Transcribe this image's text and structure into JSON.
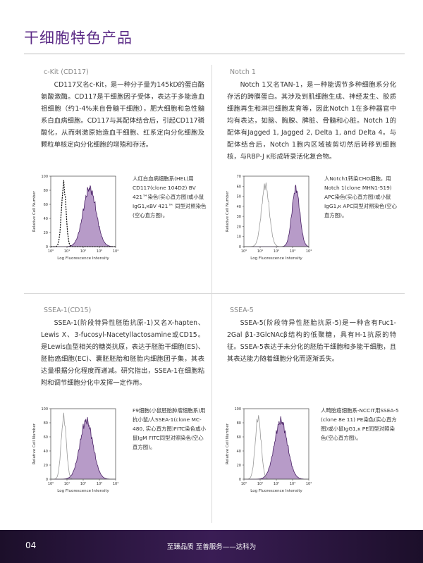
{
  "header": {
    "title": "干细胞特色产品"
  },
  "panels": [
    {
      "heading": "c-Kit (CD117)",
      "body": "CD117又名c-Kit，是一种分子量为145kD的蛋白酪氨酸激酶。CD117是干细胞因子受体，表达于多能造血祖细胞（约1-4%来自骨髓干细胞），肥大细胞和急性髓系白血病细胞。CD117与其配体结合后，引起CD117磷酸化，从而刺激原始造血干细胞、红系定向分化细胞及颗粒单核定向分化细胞的增殖和存活。",
      "caption": "人红白血病细胞系(HEL)用CD117(clone 104D2) BV 421™染色(实心直方图)或小鼠IgG1,κBV 421™ 同型对照染色(空心直方图)。",
      "plot": {
        "ylabel": "Relative Cell Number",
        "xlabel": "Log Fluorescence Intensity",
        "yticks": [
          0,
          20,
          40,
          60,
          80,
          100
        ],
        "xticks": [
          "10⁰",
          "10¹",
          "10²",
          "10³",
          "10⁴"
        ]
      }
    },
    {
      "heading": "Notch 1",
      "body": "Notch 1又名TAN-1，是一种能调节多种细胞系分化存活的跨膜蛋白。其涉及到肌细胞生成、神经发生、胶质细胞再生和淋巴细胞发育等，因此Notch 1在多种器官中均有表达，如脑、胸腺、脾脏、骨髓和心脏。Notch 1的配体有Jagged 1, Jagged 2, Delta 1, and Delta 4。与配体结合后，Notch 1胞内区域被剪切然后转移到细胞核，与RBP-J κ形成转录活化复合物。",
      "caption": "人Notch1转染CHO细胞，用Notch 1(clone MHN1-519) APC染色(实心直方图)或小鼠IgG1,κ APC同型对照染色(空心直方图)。",
      "plot": {
        "ylabel": "Relative Cell Number",
        "xlabel": "Log Fluorescence Intensity",
        "yticks": [
          0,
          10,
          20,
          30,
          40,
          50,
          60,
          70
        ],
        "xticks": [
          "10⁰",
          "10¹",
          "10²",
          "10³",
          "10⁴"
        ]
      }
    },
    {
      "heading": "SSEA-1(CD15)",
      "body": "SSEA-1(阶段特异性胚胎抗原-1)又名X-hapten、Lewis X、3-fucosyl-Nacetyllactosamine或CD15。是Lewis血型相关的糖类抗原，表达于胚胎干细胞(ES)、胚胎癌细胞(EC)、囊胚胚胎和胚胎内细胞团子集，其表达量根据分化程度而递减。研究指出，SSEA-1在细胞粘附和调节细胞分化中发挥一定作用。",
      "caption": "F9细胞(小鼠胚胎肿瘤细胞系)用抗小鼠/人SSEA-1(clone MC-480, 实心直方图)FITC染色或小鼠IgM FITC同型对照染色(空心直方图)。",
      "plot": {
        "ylabel": "Relative Cell Number",
        "xlabel": "Log Fluorescence Intensity",
        "yticks": [
          0,
          20,
          40,
          60,
          80,
          100
        ],
        "xticks": [
          "10⁰",
          "10¹",
          "10²",
          "10³",
          "10⁴"
        ]
      }
    },
    {
      "heading": "SSEA-5",
      "body": "SSEA-5(阶段特异性胚胎抗原-5)是一种含有Fuc1-2Gal β1-3GlcNAcβ结构的低聚糖，具有H-1抗原的特征。SSEA-5表达于未分化的胚胎干细胞和多能干细胞，且其表达能力随着细胞分化而逐渐丢失。",
      "caption": "人畸胎癌细胞系-NCCIT用SSEA-5 (clone 8e 11) PE染色(实心直方图)或小鼠IgG1,κ PE同型对照染色(空心直方图)。",
      "plot": {
        "ylabel": "Relative Cell Number",
        "xlabel": "Log Fluorescence Intensity",
        "yticks": [
          0,
          20,
          40,
          60,
          80,
          100
        ],
        "xticks": [
          "10⁰",
          "10¹",
          "10²",
          "10³",
          "10⁴"
        ]
      }
    }
  ],
  "footer": {
    "page": "04",
    "slogan": "至臻品质 至善服务——达科为"
  }
}
